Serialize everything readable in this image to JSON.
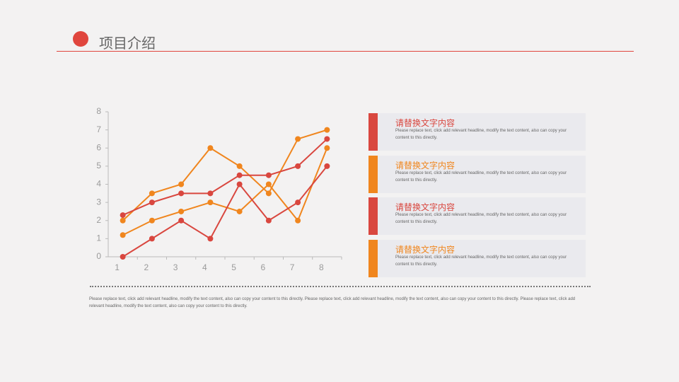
{
  "header": {
    "title": "项目介绍"
  },
  "chart_data": {
    "type": "line",
    "categories": [
      "1",
      "2",
      "3",
      "4",
      "5",
      "6",
      "7",
      "8"
    ],
    "series": [
      {
        "color": "#f0861e",
        "values": [
          2,
          3.5,
          4,
          6,
          5,
          3.5,
          6.5,
          7
        ]
      },
      {
        "color": "#d9473f",
        "values": [
          2.3,
          3,
          3.5,
          3.5,
          4.5,
          4.5,
          5,
          6.5
        ]
      },
      {
        "color": "#f0861e",
        "values": [
          1.2,
          2,
          2.5,
          3,
          2.5,
          4,
          2,
          6
        ]
      },
      {
        "color": "#d9473f",
        "values": [
          0,
          1,
          2,
          1,
          4,
          2,
          3,
          5
        ]
      }
    ],
    "ylim": [
      0,
      8
    ],
    "yticks": [
      0,
      1,
      2,
      3,
      4,
      5,
      6,
      7,
      8
    ]
  },
  "cards": [
    {
      "title": "请替换文字内容",
      "color": "#d9473f",
      "text": "Please replace text, click add relevant headline, modify the text content, also can copy your content to this directly."
    },
    {
      "title": "请替换文字内容",
      "color": "#f0861e",
      "text": "Please replace text, click add relevant headline, modify the text content, also can copy your content to this directly."
    },
    {
      "title": "请替换文字内容",
      "color": "#d9473f",
      "text": "Please replace text, click add relevant headline, modify the text content, also can copy your content to this directly."
    },
    {
      "title": "请替换文字内容",
      "color": "#f0861e",
      "text": "Please replace text, click add relevant headline, modify the text content, also can copy your content to this directly."
    }
  ],
  "footer": {
    "text": "Please replace text, click add relevant headline, modify the text content, also can copy your content to this directly. Please replace text, click add relevant headline, modify the text content, also can copy your content to this directly. Please replace text, click add relevant headline, modify the text content, also can copy your content to this directly."
  }
}
